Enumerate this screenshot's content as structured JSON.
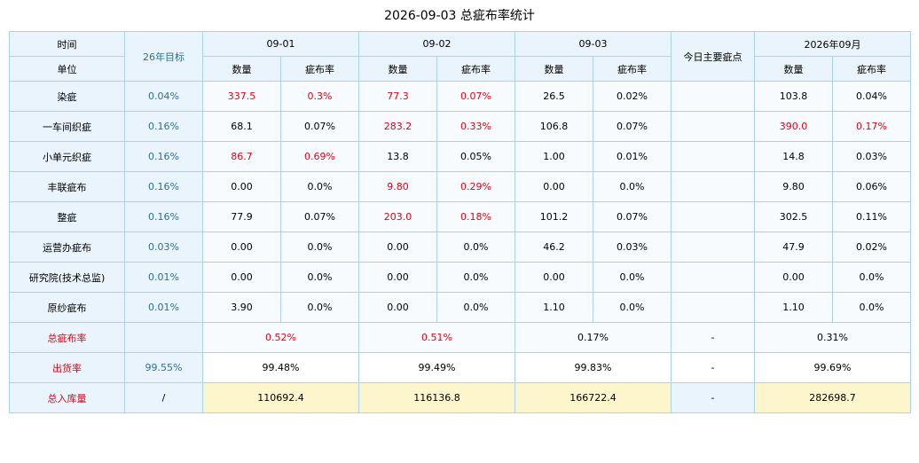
{
  "title": "2026-09-03 总疵布率统计",
  "header": {
    "time": "时间",
    "unit": "单位",
    "target": "26年目标",
    "dates": [
      "09-01",
      "09-02",
      "09-03"
    ],
    "main_defect": "今日主要疵点",
    "month": "2026年09月",
    "qty": "数量",
    "rate": "疵布率"
  },
  "rows": [
    {
      "name": "染疵",
      "target": "0.04%",
      "cells": [
        [
          "337.5",
          "0.3%",
          true
        ],
        [
          "77.3",
          "0.07%",
          true
        ],
        [
          "26.5",
          "0.02%",
          false
        ]
      ],
      "main": "",
      "month": [
        "103.8",
        "0.04%",
        false
      ]
    },
    {
      "name": "一车间织疵",
      "target": "0.16%",
      "cells": [
        [
          "68.1",
          "0.07%",
          false
        ],
        [
          "283.2",
          "0.33%",
          true
        ],
        [
          "106.8",
          "0.07%",
          false
        ]
      ],
      "main": "",
      "month": [
        "390.0",
        "0.17%",
        true
      ]
    },
    {
      "name": "小单元织疵",
      "target": "0.16%",
      "cells": [
        [
          "86.7",
          "0.69%",
          true
        ],
        [
          "13.8",
          "0.05%",
          false
        ],
        [
          "1.00",
          "0.01%",
          false
        ]
      ],
      "main": "",
      "month": [
        "14.8",
        "0.03%",
        false
      ]
    },
    {
      "name": "丰联疵布",
      "target": "0.16%",
      "cells": [
        [
          "0.00",
          "0.0%",
          false
        ],
        [
          "9.80",
          "0.29%",
          true
        ],
        [
          "0.00",
          "0.0%",
          false
        ]
      ],
      "main": "",
      "month": [
        "9.80",
        "0.06%",
        false
      ]
    },
    {
      "name": "整疵",
      "target": "0.16%",
      "cells": [
        [
          "77.9",
          "0.07%",
          false
        ],
        [
          "203.0",
          "0.18%",
          true
        ],
        [
          "101.2",
          "0.07%",
          false
        ]
      ],
      "main": "",
      "month": [
        "302.5",
        "0.11%",
        false
      ]
    },
    {
      "name": "运营办疵布",
      "target": "0.03%",
      "cells": [
        [
          "0.00",
          "0.0%",
          false
        ],
        [
          "0.00",
          "0.0%",
          false
        ],
        [
          "46.2",
          "0.03%",
          false
        ]
      ],
      "main": "",
      "month": [
        "47.9",
        "0.02%",
        false
      ]
    },
    {
      "name": "研究院(技术总监)",
      "target": "0.01%",
      "cells": [
        [
          "0.00",
          "0.0%",
          false
        ],
        [
          "0.00",
          "0.0%",
          false
        ],
        [
          "0.00",
          "0.0%",
          false
        ]
      ],
      "main": "",
      "month": [
        "0.00",
        "0.0%",
        false
      ]
    },
    {
      "name": "原纱疵布",
      "target": "0.01%",
      "cells": [
        [
          "3.90",
          "0.0%",
          false
        ],
        [
          "0.00",
          "0.0%",
          false
        ],
        [
          "1.10",
          "0.0%",
          false
        ]
      ],
      "main": "",
      "month": [
        "1.10",
        "0.0%",
        false
      ]
    }
  ],
  "summary": {
    "total": {
      "label": "总疵布率",
      "target": "",
      "values": [
        "0.52%",
        "0.51%",
        "0.17%"
      ],
      "main": "-",
      "month": "0.31%",
      "red": [
        true,
        true,
        false
      ]
    },
    "ship": {
      "label": "出货率",
      "target": "99.55%",
      "values": [
        "99.48%",
        "99.49%",
        "99.83%"
      ],
      "main": "-",
      "month": "99.69%"
    },
    "stock": {
      "label": "总入库量",
      "target": "/",
      "values": [
        "110692.4",
        "116136.8",
        "166722.4"
      ],
      "main": "-",
      "month": "282698.7"
    }
  },
  "colors": {
    "red": "#e60012",
    "header_bg": "#eaf4fc",
    "target_text": "#2e6f93",
    "stock_bg": "#fdf6cd",
    "border": "#a9d3ec"
  }
}
